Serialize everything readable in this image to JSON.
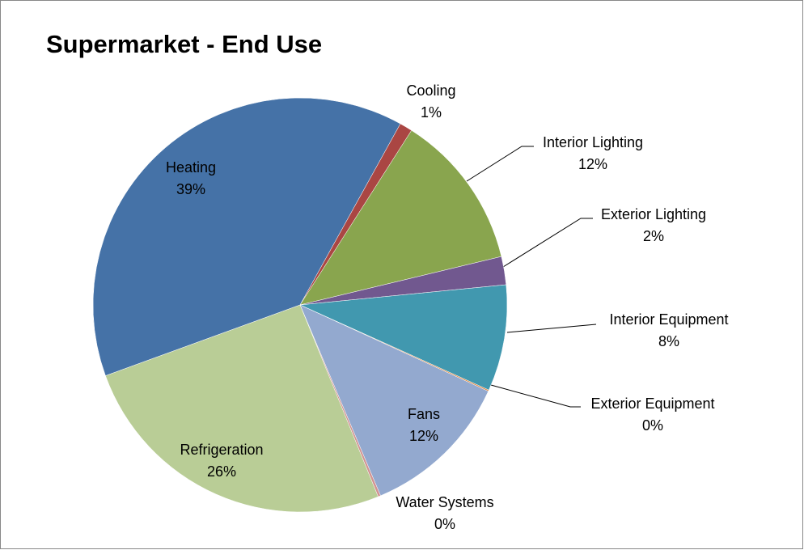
{
  "chart_data": {
    "type": "pie",
    "title": "Supermarket - End Use",
    "categories": [
      "Heating",
      "Cooling",
      "Interior Lighting",
      "Exterior Lighting",
      "Interior Equipment",
      "Exterior Equipment",
      "Fans",
      "Water Systems",
      "Refrigeration"
    ],
    "values": [
      38.6,
      1.0,
      12.2,
      2.2,
      8.3,
      0.1,
      11.8,
      0.2,
      25.6
    ],
    "value_labels": [
      "39%",
      "1%",
      "12%",
      "2%",
      "8%",
      "0%",
      "12%",
      "0%",
      "26%"
    ],
    "colors": [
      "#4572a7",
      "#aa4643",
      "#89a54e",
      "#71588f",
      "#4198af",
      "#db843d",
      "#93a9cf",
      "#d19392",
      "#b9cd96"
    ]
  }
}
